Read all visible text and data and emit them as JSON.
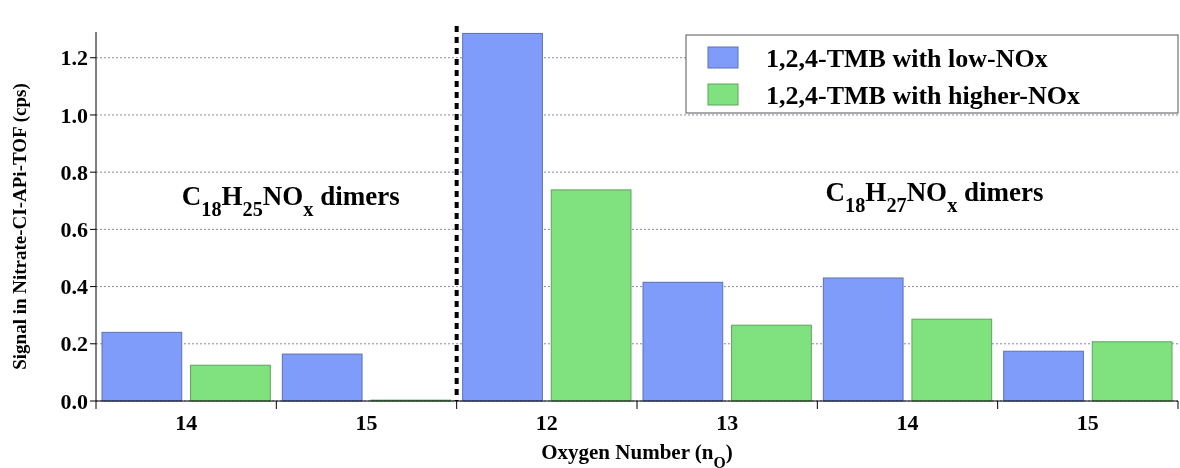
{
  "chart_data": {
    "type": "bar",
    "xlabel": "Oxygen Number (n$_{O}$)",
    "ylabel": "Signal in Nitrate-CI-APi-TOF (cps)",
    "categories": [
      "14",
      "15",
      "12",
      "13",
      "14",
      "15"
    ],
    "series": [
      {
        "name": "1,2,4-TMB with low-NOx",
        "color": "#7f9cfa",
        "values": [
          0.24,
          0.164,
          1.285,
          0.415,
          0.43,
          0.174
        ]
      },
      {
        "name": "1,2,4-TMB with higher-NOx",
        "color": "#80e27e",
        "values": [
          0.125,
          0.003,
          0.738,
          0.265,
          0.286,
          0.207
        ]
      }
    ],
    "ylim": [
      0,
      1.29
    ],
    "yticks": [
      {
        "value": 0,
        "label": "0.0"
      },
      0.2,
      0.4,
      0.6,
      0.8,
      {
        "value": 1,
        "label": "1.0"
      },
      1.2
    ],
    "grid": "y",
    "legend": "top right",
    "annotations": [
      "C$_{18}$H$_{25}$NO$_{x}$ dimers",
      "C$_{18}$H$_{27}$NO$_{x}$ dimers"
    ]
  }
}
